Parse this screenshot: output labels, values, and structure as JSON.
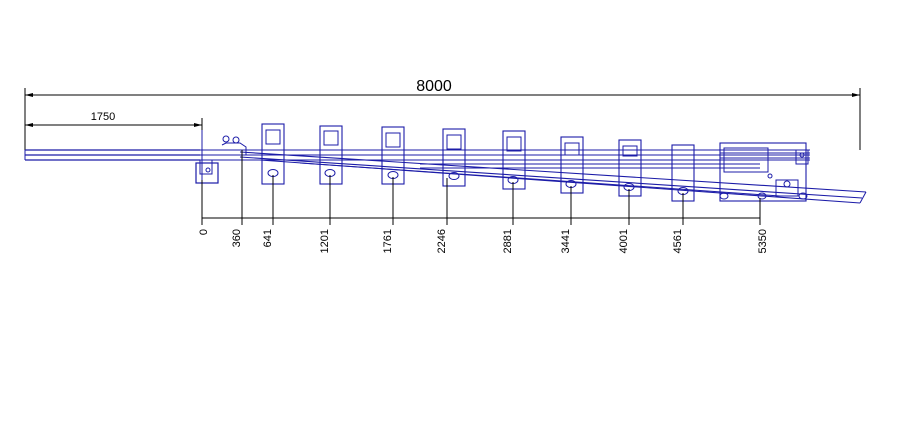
{
  "drawing": {
    "overall_length_label": "8000",
    "overhang_label": "1750",
    "station_labels": [
      "0",
      "360",
      "641",
      "1201",
      "1761",
      "2246",
      "2881",
      "3441",
      "4001",
      "4561",
      "5350"
    ],
    "colors": {
      "track": "#1c1ca8",
      "dimension": "#000000",
      "background": "#ffffff"
    }
  }
}
